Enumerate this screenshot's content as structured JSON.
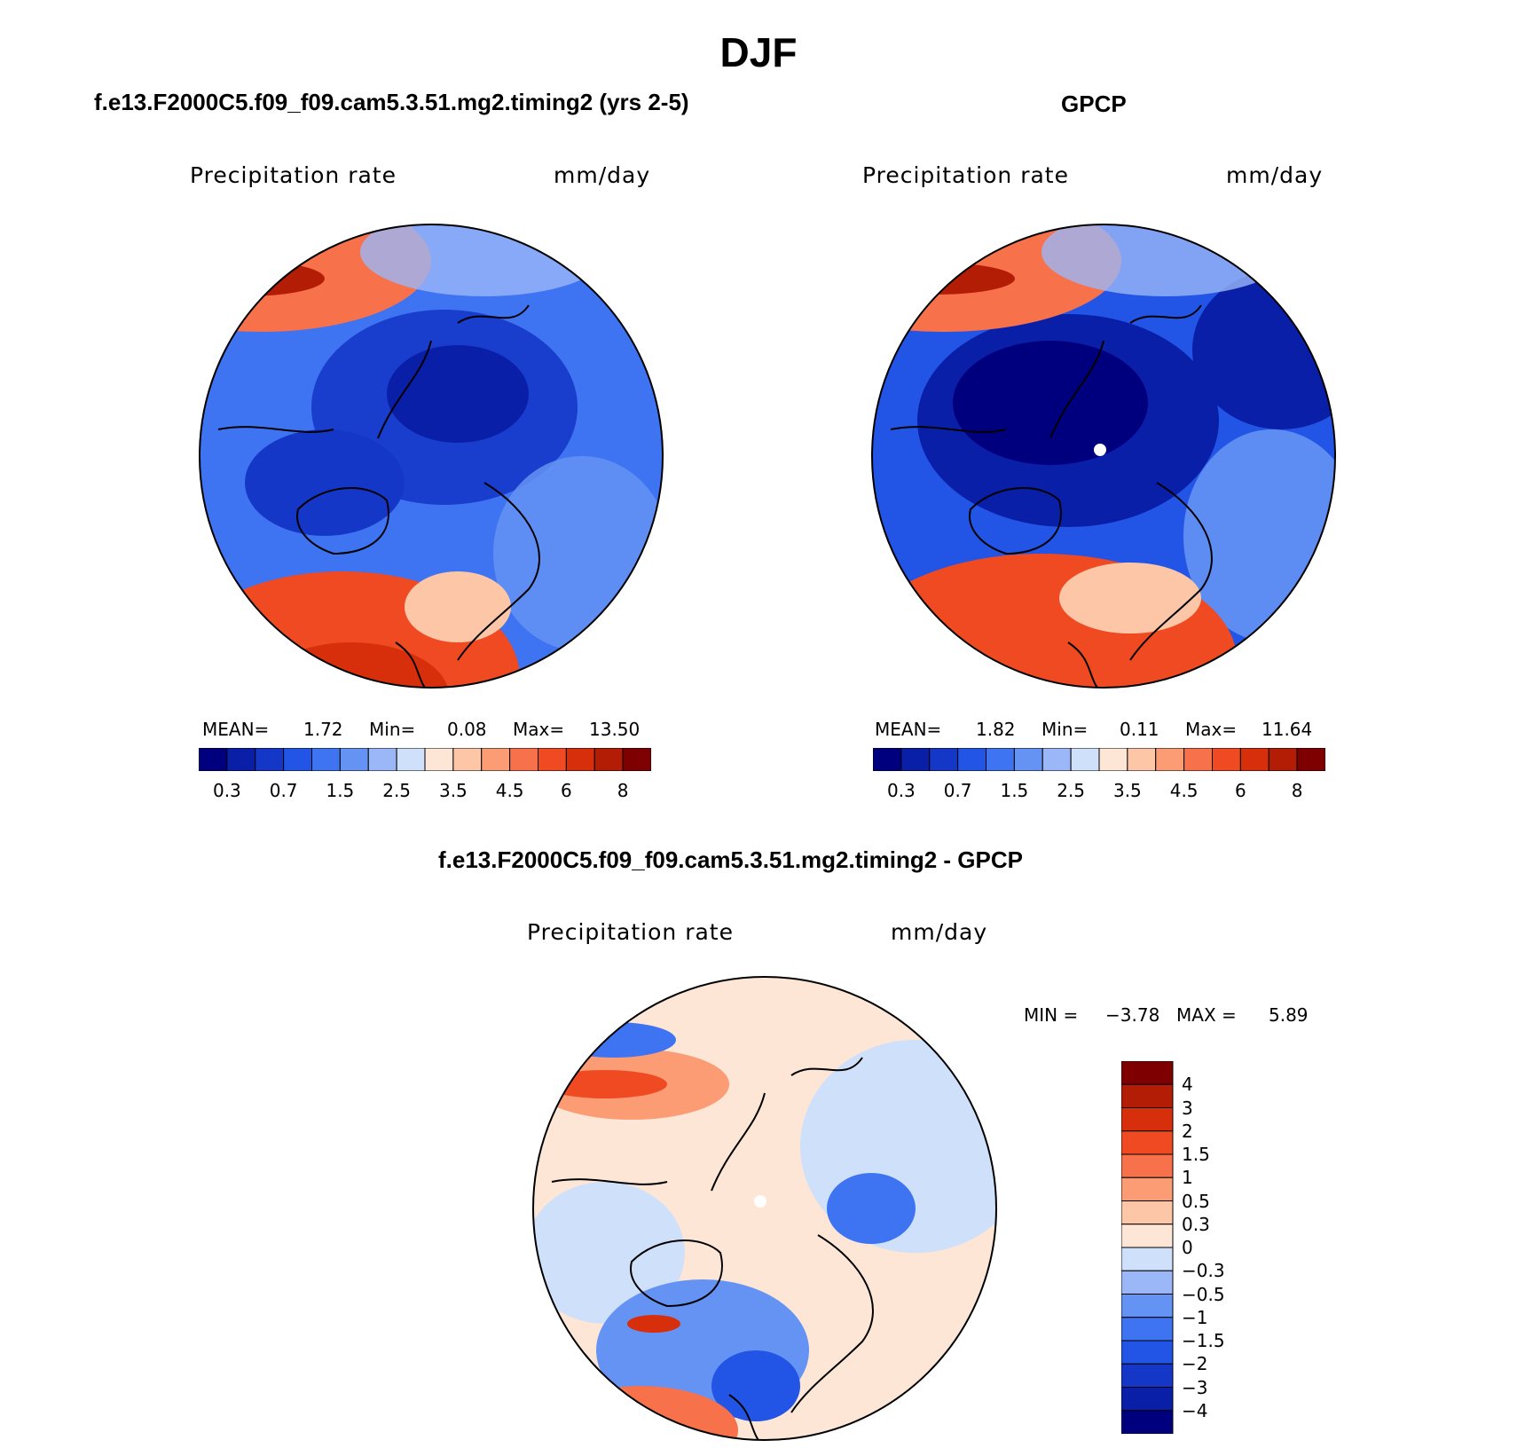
{
  "figure": {
    "title": "DJF"
  },
  "panels": [
    {
      "title": "f.e13.F2000C5.f09_f09.cam5.3.51.mg2.timing2 (yrs 2-5)",
      "variable": "Precipitation rate",
      "units": "mm/day",
      "stats": {
        "mean_label": "MEAN=",
        "mean": "1.72",
        "min_label": "Min=",
        "min": "0.08",
        "max_label": "Max=",
        "max": "13.50"
      }
    },
    {
      "title": "GPCP",
      "variable": "Precipitation rate",
      "units": "mm/day",
      "stats": {
        "mean_label": "MEAN=",
        "mean": "1.82",
        "min_label": "Min=",
        "min": "0.11",
        "max_label": "Max=",
        "max": "11.64"
      }
    },
    {
      "title": "f.e13.F2000C5.f09_f09.cam5.3.51.mg2.timing2 - GPCP",
      "variable": "Precipitation rate",
      "units": "mm/day",
      "stats": {
        "min_label": "MIN =",
        "min": "−3.78",
        "max_label": "MAX =",
        "max": "5.89"
      }
    }
  ],
  "colorbar_horizontal": {
    "labels": [
      "0.3",
      "0.7",
      "1.5",
      "2.5",
      "3.5",
      "4.5",
      "6",
      "8"
    ],
    "colors": [
      "#00007f",
      "#0a1fa8",
      "#1537c8",
      "#2255e6",
      "#3e73f2",
      "#6493f3",
      "#9bb7f7",
      "#cfe0fb",
      "#fde6d6",
      "#fcc6a7",
      "#fb9c75",
      "#f7714a",
      "#ef4a22",
      "#d72f0c",
      "#b31c05",
      "#7f0000"
    ]
  },
  "colorbar_vertical": {
    "labels": [
      "4",
      "3",
      "2",
      "1.5",
      "1",
      "0.5",
      "0.3",
      "0",
      "−0.3",
      "−0.5",
      "−1",
      "−1.5",
      "−2",
      "−3",
      "−4"
    ],
    "colors": [
      "#7f0000",
      "#b31c05",
      "#d72f0c",
      "#ef4a22",
      "#f7714a",
      "#fb9c75",
      "#fcc6a7",
      "#fde6d6",
      "#cfe0fb",
      "#9bb7f7",
      "#6493f3",
      "#3e73f2",
      "#2255e6",
      "#1537c8",
      "#0a1fa8",
      "#00007f"
    ]
  },
  "maps": [
    {
      "name": "model",
      "base": "#3e73f2",
      "projection": "north polar stereographic"
    },
    {
      "name": "gpcp",
      "base": "#2255e6",
      "projection": "north polar stereographic"
    },
    {
      "name": "difference",
      "base": "#fde6d6",
      "projection": "north polar stereographic"
    }
  ]
}
